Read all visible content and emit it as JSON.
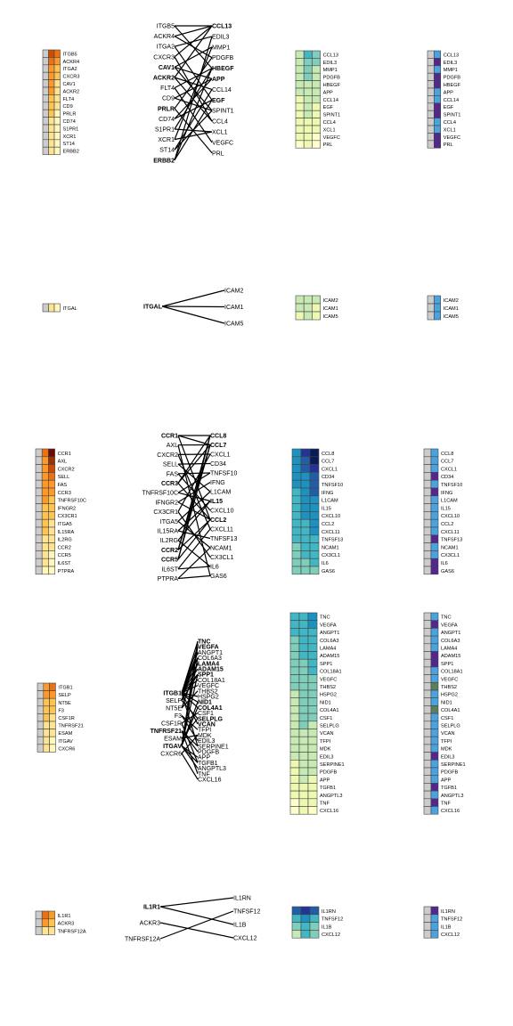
{
  "colors": {
    "ligand_scale": [
      "#fff7bc",
      "#fee391",
      "#fec44f",
      "#fe9929",
      "#ec7014",
      "#cc4c02",
      "#993404",
      "#8c2d04",
      "#6b0b05"
    ],
    "target_scale": [
      "#ffffcc",
      "#edf8b1",
      "#c7e9b4",
      "#7fcdbb",
      "#41b6c4",
      "#1d91c0",
      "#225ea8",
      "#253494",
      "#081d58"
    ],
    "label_blue": "#4aa3df",
    "label_purple": "#54278f",
    "label_gray": "#cccccc",
    "label_olive": "#5b7f5b",
    "grid_line": "#444444",
    "edge": "#000000"
  },
  "modules": [
    {
      "id": "m1",
      "ligand_receptors": [
        "ITGB5",
        "ACKR4",
        "ITGA2",
        "CXCR3",
        "CAV1",
        "ACKR2",
        "FLT4",
        "CD9",
        "PRLR",
        "CD74",
        "S1PR1",
        "XCR1",
        "ST14",
        "ERBB2"
      ],
      "ligand_heat": [
        [
          0,
          5,
          4
        ],
        [
          0,
          4,
          3
        ],
        [
          0,
          3,
          2
        ],
        [
          0,
          3,
          2
        ],
        [
          0,
          3,
          1
        ],
        [
          0,
          3,
          1
        ],
        [
          0,
          2,
          1
        ],
        [
          0,
          2,
          1
        ],
        [
          0,
          2,
          0
        ],
        [
          0,
          1,
          0
        ],
        [
          0,
          1,
          0
        ],
        [
          0,
          1,
          0
        ],
        [
          0,
          1,
          0
        ],
        [
          0,
          1,
          0
        ]
      ],
      "bold_receptors": [
        "CAV1",
        "ACKR2",
        "PRLR",
        "ERBB2"
      ],
      "targets": [
        "CCL13",
        "EDIL3",
        "MMP1",
        "PDGFB",
        "HBEGF",
        "APP",
        "CCL14",
        "EGF",
        "SPINT1",
        "CCL4",
        "XCL1",
        "VEGFC",
        "PRL"
      ],
      "bold_targets": [
        "CCL13",
        "HBEGF",
        "APP",
        "EGF"
      ],
      "target_heat": [
        [
          2,
          4,
          3
        ],
        [
          2,
          3,
          3
        ],
        [
          2,
          3,
          2
        ],
        [
          2,
          3,
          2
        ],
        [
          2,
          2,
          2
        ],
        [
          2,
          2,
          2
        ],
        [
          1,
          2,
          2
        ],
        [
          1,
          2,
          1
        ],
        [
          1,
          2,
          1
        ],
        [
          1,
          1,
          1
        ],
        [
          1,
          1,
          1
        ],
        [
          1,
          1,
          0
        ],
        [
          0,
          1,
          0
        ]
      ],
      "target_labels": [
        [
          0,
          1
        ],
        [
          0,
          2
        ],
        [
          0,
          1
        ],
        [
          0,
          2
        ],
        [
          0,
          2
        ],
        [
          0,
          1
        ],
        [
          0,
          1
        ],
        [
          0,
          2
        ],
        [
          0,
          2
        ],
        [
          0,
          1
        ],
        [
          0,
          1
        ],
        [
          0,
          2
        ],
        [
          0,
          2
        ]
      ],
      "edges": [
        [
          0,
          0
        ],
        [
          0,
          4
        ],
        [
          1,
          0
        ],
        [
          1,
          3
        ],
        [
          2,
          1
        ],
        [
          2,
          7
        ],
        [
          3,
          0
        ],
        [
          3,
          9
        ],
        [
          4,
          2
        ],
        [
          4,
          5
        ],
        [
          4,
          8
        ],
        [
          5,
          0
        ],
        [
          5,
          6
        ],
        [
          5,
          9
        ],
        [
          6,
          11
        ],
        [
          6,
          4
        ],
        [
          7,
          5
        ],
        [
          7,
          8
        ],
        [
          8,
          12
        ],
        [
          8,
          3
        ],
        [
          9,
          5
        ],
        [
          9,
          7
        ],
        [
          10,
          4
        ],
        [
          10,
          10
        ],
        [
          11,
          10
        ],
        [
          11,
          2
        ],
        [
          12,
          8
        ],
        [
          12,
          6
        ],
        [
          13,
          4
        ],
        [
          13,
          7
        ],
        [
          13,
          1
        ]
      ]
    },
    {
      "id": "m2",
      "ligand_receptors": [
        "ITGAL"
      ],
      "ligand_heat": [
        [
          0,
          1,
          0
        ]
      ],
      "bold_receptors": [
        "ITGAL"
      ],
      "targets": [
        "ICAM2",
        "ICAM1",
        "ICAM5"
      ],
      "bold_targets": [],
      "target_heat": [
        [
          2,
          2,
          2
        ],
        [
          2,
          2,
          1
        ],
        [
          1,
          2,
          1
        ]
      ],
      "target_labels": [
        [
          0,
          1
        ],
        [
          0,
          1
        ],
        [
          0,
          1
        ]
      ],
      "edges": [
        [
          0,
          0
        ],
        [
          0,
          1
        ],
        [
          0,
          2
        ]
      ]
    },
    {
      "id": "m3",
      "ligand_receptors": [
        "CCR1",
        "AXL",
        "CXCR2",
        "SELL",
        "FAS",
        "CCR3",
        "TNFRSF10C",
        "IFNGR2",
        "CX3CR1",
        "ITGA5",
        "IL15RA",
        "IL2RG",
        "CCR2",
        "CCR5",
        "IL6ST",
        "PTPRA"
      ],
      "ligand_heat": [
        [
          0,
          4,
          8
        ],
        [
          0,
          3,
          6
        ],
        [
          0,
          3,
          5
        ],
        [
          0,
          3,
          4
        ],
        [
          0,
          3,
          3
        ],
        [
          0,
          3,
          3
        ],
        [
          0,
          3,
          2
        ],
        [
          0,
          2,
          2
        ],
        [
          0,
          2,
          2
        ],
        [
          0,
          2,
          1
        ],
        [
          0,
          2,
          1
        ],
        [
          0,
          1,
          1
        ],
        [
          0,
          1,
          1
        ],
        [
          0,
          1,
          0
        ],
        [
          0,
          1,
          0
        ],
        [
          0,
          0,
          0
        ]
      ],
      "bold_receptors": [
        "CCR1",
        "CCR3",
        "CCR2",
        "CCR5"
      ],
      "targets": [
        "CCL8",
        "CCL7",
        "CXCL1",
        "CD34",
        "TNFSF10",
        "IFNG",
        "L1CAM",
        "IL15",
        "CXCL10",
        "CCL2",
        "CXCL11",
        "TNFSF13",
        "NCAM1",
        "CX3CL1",
        "IL6",
        "GAS6"
      ],
      "bold_targets": [
        "CCL8",
        "CCL7",
        "IL15",
        "CCL2"
      ],
      "target_heat": [
        [
          5,
          7,
          8
        ],
        [
          5,
          6,
          8
        ],
        [
          5,
          6,
          7
        ],
        [
          5,
          5,
          6
        ],
        [
          5,
          5,
          6
        ],
        [
          4,
          5,
          6
        ],
        [
          4,
          5,
          5
        ],
        [
          4,
          5,
          5
        ],
        [
          4,
          5,
          5
        ],
        [
          4,
          4,
          5
        ],
        [
          4,
          4,
          5
        ],
        [
          4,
          4,
          4
        ],
        [
          3,
          4,
          4
        ],
        [
          3,
          4,
          4
        ],
        [
          3,
          3,
          4
        ],
        [
          3,
          3,
          3
        ]
      ],
      "target_labels": [
        [
          0,
          1
        ],
        [
          0,
          1
        ],
        [
          0,
          1
        ],
        [
          0,
          2
        ],
        [
          0,
          1
        ],
        [
          0,
          2
        ],
        [
          0,
          1
        ],
        [
          0,
          1
        ],
        [
          0,
          1
        ],
        [
          0,
          1
        ],
        [
          0,
          1
        ],
        [
          0,
          2
        ],
        [
          0,
          1
        ],
        [
          0,
          1
        ],
        [
          0,
          2
        ],
        [
          0,
          2
        ]
      ],
      "edges": [
        [
          0,
          0
        ],
        [
          0,
          1
        ],
        [
          0,
          9
        ],
        [
          1,
          15
        ],
        [
          1,
          1
        ],
        [
          2,
          2
        ],
        [
          2,
          10
        ],
        [
          3,
          3
        ],
        [
          3,
          6
        ],
        [
          4,
          4
        ],
        [
          4,
          8
        ],
        [
          5,
          0
        ],
        [
          5,
          1
        ],
        [
          5,
          9
        ],
        [
          6,
          4
        ],
        [
          6,
          7
        ],
        [
          7,
          5
        ],
        [
          7,
          9
        ],
        [
          8,
          13
        ],
        [
          8,
          2
        ],
        [
          9,
          6
        ],
        [
          9,
          12
        ],
        [
          10,
          7
        ],
        [
          10,
          11
        ],
        [
          11,
          7
        ],
        [
          11,
          14
        ],
        [
          12,
          1
        ],
        [
          12,
          9
        ],
        [
          12,
          0
        ],
        [
          13,
          0
        ],
        [
          13,
          1
        ],
        [
          13,
          9
        ],
        [
          14,
          14
        ],
        [
          14,
          10
        ],
        [
          15,
          15
        ],
        [
          15,
          12
        ]
      ]
    },
    {
      "id": "m4",
      "ligand_receptors": [
        "ITGB1",
        "SELP",
        "NT5E",
        "F3",
        "CSF1R",
        "TNFRSF21",
        "ESAM",
        "ITGAV",
        "CXCR6"
      ],
      "ligand_heat": [
        [
          0,
          3,
          4
        ],
        [
          0,
          3,
          3
        ],
        [
          0,
          2,
          2
        ],
        [
          0,
          2,
          2
        ],
        [
          0,
          2,
          1
        ],
        [
          0,
          1,
          1
        ],
        [
          0,
          1,
          1
        ],
        [
          0,
          1,
          0
        ],
        [
          0,
          1,
          0
        ]
      ],
      "bold_receptors": [
        "ITGB1",
        "TNFRSF21",
        "ITGAV"
      ],
      "targets": [
        "TNC",
        "VEGFA",
        "ANGPT1",
        "COL6A3",
        "LAMA4",
        "ADAM15",
        "SPP1",
        "COL18A1",
        "VEGFC",
        "THBS2",
        "HSPG2",
        "NID1",
        "COL4A1",
        "CSF1",
        "SELPLG",
        "VCAN",
        "TFPI",
        "MDK",
        "EDIL3",
        "SERPINE1",
        "PDGFB",
        "APP",
        "TGFB1",
        "ANGPTL3",
        "TNF",
        "CXCL16"
      ],
      "bold_targets": [
        "TNC",
        "VEGFA",
        "LAMA4",
        "ADAM15",
        "SPP1",
        "NID1",
        "COL4A1",
        "SELPLG",
        "VCAN"
      ],
      "target_heat": [
        [
          4,
          4,
          5
        ],
        [
          4,
          4,
          5
        ],
        [
          4,
          4,
          4
        ],
        [
          3,
          4,
          4
        ],
        [
          3,
          4,
          4
        ],
        [
          3,
          4,
          4
        ],
        [
          3,
          3,
          4
        ],
        [
          3,
          3,
          4
        ],
        [
          3,
          3,
          3
        ],
        [
          3,
          3,
          3
        ],
        [
          2,
          3,
          3
        ],
        [
          2,
          3,
          3
        ],
        [
          2,
          3,
          3
        ],
        [
          2,
          3,
          3
        ],
        [
          2,
          3,
          2
        ],
        [
          2,
          2,
          2
        ],
        [
          2,
          2,
          2
        ],
        [
          2,
          2,
          2
        ],
        [
          2,
          2,
          2
        ],
        [
          1,
          2,
          2
        ],
        [
          1,
          2,
          2
        ],
        [
          1,
          2,
          1
        ],
        [
          1,
          1,
          1
        ],
        [
          1,
          1,
          1
        ],
        [
          0,
          1,
          1
        ],
        [
          0,
          1,
          0
        ]
      ],
      "target_labels": [
        [
          0,
          1
        ],
        [
          0,
          2
        ],
        [
          0,
          1
        ],
        [
          0,
          1
        ],
        [
          0,
          1
        ],
        [
          0,
          2
        ],
        [
          0,
          2
        ],
        [
          0,
          1
        ],
        [
          0,
          1
        ],
        [
          0,
          3
        ],
        [
          0,
          1
        ],
        [
          0,
          1
        ],
        [
          0,
          3
        ],
        [
          0,
          1
        ],
        [
          0,
          1
        ],
        [
          0,
          1
        ],
        [
          0,
          1
        ],
        [
          0,
          1
        ],
        [
          0,
          2
        ],
        [
          0,
          1
        ],
        [
          0,
          1
        ],
        [
          0,
          1
        ],
        [
          0,
          2
        ],
        [
          0,
          1
        ],
        [
          0,
          2
        ],
        [
          0,
          1
        ]
      ],
      "edges": [
        [
          0,
          0
        ],
        [
          0,
          1
        ],
        [
          0,
          2
        ],
        [
          0,
          3
        ],
        [
          0,
          4
        ],
        [
          0,
          5
        ],
        [
          0,
          6
        ],
        [
          0,
          7
        ],
        [
          0,
          8
        ],
        [
          0,
          10
        ],
        [
          0,
          11
        ],
        [
          0,
          12
        ],
        [
          0,
          15
        ],
        [
          0,
          19
        ],
        [
          1,
          14
        ],
        [
          1,
          2
        ],
        [
          1,
          6
        ],
        [
          2,
          4
        ],
        [
          2,
          9
        ],
        [
          3,
          16
        ],
        [
          3,
          18
        ],
        [
          4,
          13
        ],
        [
          4,
          22
        ],
        [
          5,
          24
        ],
        [
          5,
          19
        ],
        [
          5,
          20
        ],
        [
          6,
          14
        ],
        [
          6,
          17
        ],
        [
          7,
          0
        ],
        [
          7,
          1
        ],
        [
          7,
          3
        ],
        [
          7,
          6
        ],
        [
          7,
          11
        ],
        [
          7,
          12
        ],
        [
          7,
          21
        ],
        [
          7,
          22
        ],
        [
          7,
          23
        ],
        [
          8,
          25
        ],
        [
          8,
          17
        ]
      ]
    },
    {
      "id": "m5",
      "ligand_receptors": [
        "IL1R1",
        "ACKR3",
        "TNFRSF12A"
      ],
      "ligand_heat": [
        [
          0,
          4,
          3
        ],
        [
          0,
          3,
          2
        ],
        [
          0,
          1,
          1
        ]
      ],
      "bold_receptors": [
        "IL1R1"
      ],
      "targets": [
        "IL1RN",
        "TNFSF12",
        "IL1B",
        "CXCL12"
      ],
      "bold_targets": [],
      "target_heat": [
        [
          6,
          7,
          6
        ],
        [
          4,
          5,
          4
        ],
        [
          3,
          4,
          3
        ],
        [
          2,
          4,
          3
        ]
      ],
      "target_labels": [
        [
          0,
          2
        ],
        [
          0,
          1
        ],
        [
          0,
          1
        ],
        [
          0,
          1
        ]
      ],
      "edges": [
        [
          0,
          0
        ],
        [
          0,
          2
        ],
        [
          1,
          3
        ],
        [
          2,
          1
        ]
      ]
    }
  ]
}
